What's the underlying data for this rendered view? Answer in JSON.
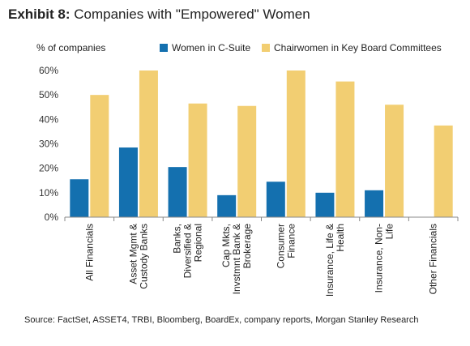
{
  "exhibit": {
    "label": "Exhibit 8:",
    "title": "Companies with \"Empowered\" Women",
    "source": "Source: FactSet, ASSET4, TRBI, Bloomberg, BoardEx, company reports, Morgan Stanley Research"
  },
  "chart_data": {
    "type": "bar",
    "title": "Companies with \"Empowered\" Women",
    "ylabel": "% of companies",
    "xlabel": "",
    "ylim": [
      0,
      60
    ],
    "yticks": [
      "0%",
      "10%",
      "20%",
      "30%",
      "40%",
      "50%",
      "60%"
    ],
    "yticks_values": [
      0,
      10,
      20,
      30,
      40,
      50,
      60
    ],
    "legend_position": "top",
    "grid": false,
    "categories": [
      "All Financials",
      "Asset Mgmt & Custody Banks",
      "Banks, Diversified & Regional",
      "Cap Mkts, Invstmnt Bank & Brokerage",
      "Consumer Finance",
      "Insurance, Life & Health",
      "Insurance, Non-Life",
      "Other Financials"
    ],
    "category_lines": [
      [
        "All Financials"
      ],
      [
        "Asset Mgmt &",
        "Custody Banks"
      ],
      [
        "Banks,",
        "Diversified &",
        "Regional"
      ],
      [
        "Cap Mkts,",
        "Invstmnt Bank &",
        "Brokerage"
      ],
      [
        "Consumer",
        "Finance"
      ],
      [
        "Insurance, Life &",
        "Health"
      ],
      [
        "Insurance, Non-",
        "Life"
      ],
      [
        "Other Financials"
      ]
    ],
    "series": [
      {
        "name": "Women in C-Suite",
        "color": "#1470AF",
        "values": [
          15.5,
          28.5,
          20.5,
          9,
          14.5,
          10,
          11,
          0
        ]
      },
      {
        "name": "Chairwomen in Key Board Committees",
        "color": "#F2CE72",
        "values": [
          50,
          60,
          46.5,
          45.5,
          60,
          55.5,
          46,
          37.5
        ]
      }
    ]
  }
}
